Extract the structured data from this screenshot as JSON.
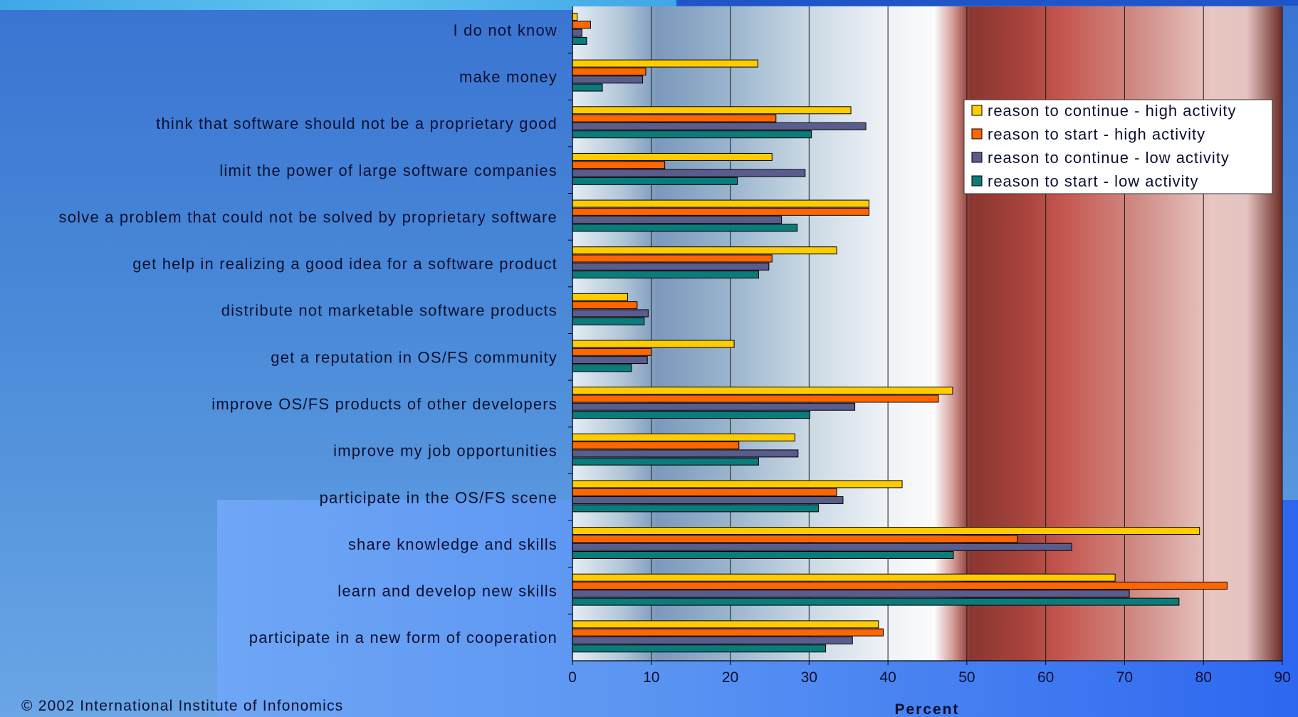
{
  "copyright": "© 2002 International Institute of Infonomics",
  "chart_data": {
    "type": "bar",
    "orientation": "horizontal",
    "xlabel": "Percent",
    "xlim": [
      0,
      90
    ],
    "xticks": [
      0,
      10,
      20,
      30,
      40,
      50,
      60,
      70,
      80,
      90
    ],
    "grid": true,
    "legend_position": "top-right",
    "categories": [
      "I do not know",
      "make money",
      "think that software should not be a proprietary good",
      "limit the power of large software companies",
      "solve a problem that could not be solved by proprietary software",
      "get help in realizing a good idea for a software product",
      "distribute not marketable software products",
      "get a reputation in OS/FS community",
      "improve OS/FS products of other developers",
      "improve my job opportunities",
      "participate in the OS/FS scene",
      "share knowledge and skills",
      "learn and develop new skills",
      "participate in a new form of cooperation"
    ],
    "series": [
      {
        "name": "reason to continue - high activity",
        "color": "#ffcc00",
        "values": [
          0.6,
          23.5,
          35.3,
          25.3,
          37.6,
          33.5,
          7.0,
          20.5,
          48.2,
          28.2,
          41.8,
          79.5,
          68.8,
          38.8
        ]
      },
      {
        "name": "reason to start - high activity",
        "color": "#ff6600",
        "values": [
          2.3,
          9.3,
          25.8,
          11.7,
          37.6,
          25.3,
          8.2,
          10.0,
          46.4,
          21.1,
          33.5,
          56.4,
          83.0,
          39.4
        ]
      },
      {
        "name": "reason to continue - low activity",
        "color": "#5a5c8c",
        "values": [
          1.2,
          8.9,
          37.2,
          29.5,
          26.5,
          24.9,
          9.6,
          9.5,
          35.8,
          28.6,
          34.3,
          63.3,
          70.6,
          35.5
        ]
      },
      {
        "name": "reason to start - low activity",
        "color": "#0b7b7b",
        "values": [
          1.8,
          3.8,
          30.3,
          20.9,
          28.5,
          23.6,
          9.1,
          7.5,
          30.1,
          23.6,
          31.2,
          48.3,
          76.9,
          32.1
        ]
      }
    ]
  }
}
